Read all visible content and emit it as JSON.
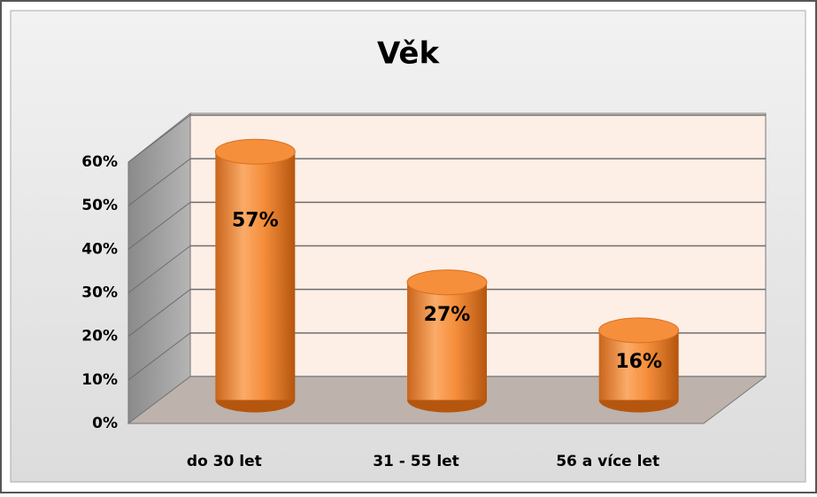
{
  "chart_data": {
    "type": "bar3d",
    "title": "Věk",
    "categories": [
      "do 30 let",
      "31 - 55 let",
      "56 a více let"
    ],
    "values": [
      57,
      27,
      16
    ],
    "value_labels": [
      "57%",
      "27%",
      "16%"
    ],
    "color": "#f58f3c",
    "ylim": [
      0,
      60
    ],
    "yticks": [
      {
        "value": 0,
        "label": "0%"
      },
      {
        "value": 10,
        "label": "10%"
      },
      {
        "value": 20,
        "label": "20%"
      },
      {
        "value": 30,
        "label": "30%"
      },
      {
        "value": 40,
        "label": "40%"
      },
      {
        "value": 50,
        "label": "50%"
      },
      {
        "value": 60,
        "label": "60%"
      }
    ],
    "grid": true
  }
}
